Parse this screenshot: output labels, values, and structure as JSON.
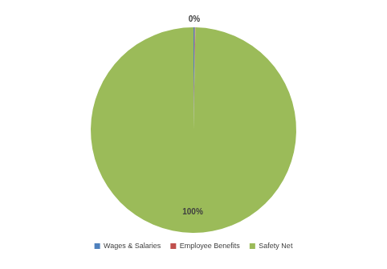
{
  "chart_data": {
    "type": "pie",
    "categories": [
      "Wages & Salaries",
      "Employee Benefits",
      "Safety Net"
    ],
    "values": [
      0.2,
      0.1,
      99.7
    ],
    "colors": [
      "#4f81bd",
      "#c0504d",
      "#9bbb59"
    ],
    "value_labels": [
      "0%",
      null,
      "100%"
    ],
    "data_labels": true,
    "legend": "bottom"
  }
}
